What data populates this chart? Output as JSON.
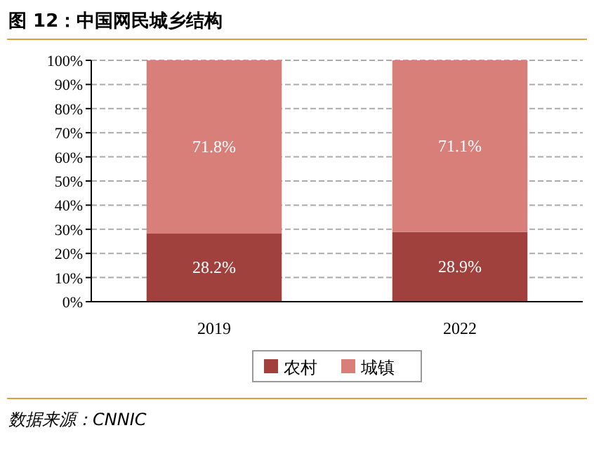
{
  "chart_data": {
    "type": "bar",
    "title": "图 12：中国网民城乡结构",
    "stacked": true,
    "categories": [
      "2019",
      "2022"
    ],
    "series": [
      {
        "name": "农村",
        "color": "#a0413e",
        "values": [
          28.2,
          28.9
        ],
        "value_labels": [
          "28.2%",
          "28.9%"
        ]
      },
      {
        "name": "城镇",
        "color": "#d87f7a",
        "values": [
          71.8,
          71.1
        ],
        "value_labels": [
          "71.8%",
          "71.1%"
        ]
      }
    ],
    "ylim": [
      0,
      100
    ],
    "yticks": [
      {
        "value": 0,
        "label": "0%"
      },
      {
        "value": 10,
        "label": "10%"
      },
      {
        "value": 20,
        "label": "20%"
      },
      {
        "value": 30,
        "label": "30%"
      },
      {
        "value": 40,
        "label": "40%"
      },
      {
        "value": 50,
        "label": "50%"
      },
      {
        "value": 60,
        "label": "60%"
      },
      {
        "value": 70,
        "label": "70%"
      },
      {
        "value": 80,
        "label": "80%"
      },
      {
        "value": 90,
        "label": "90%"
      },
      {
        "value": 100,
        "label": "100%"
      }
    ],
    "grid": "y",
    "legend": "bottom",
    "annotations": [
      "数据来源：CNNIC"
    ]
  }
}
